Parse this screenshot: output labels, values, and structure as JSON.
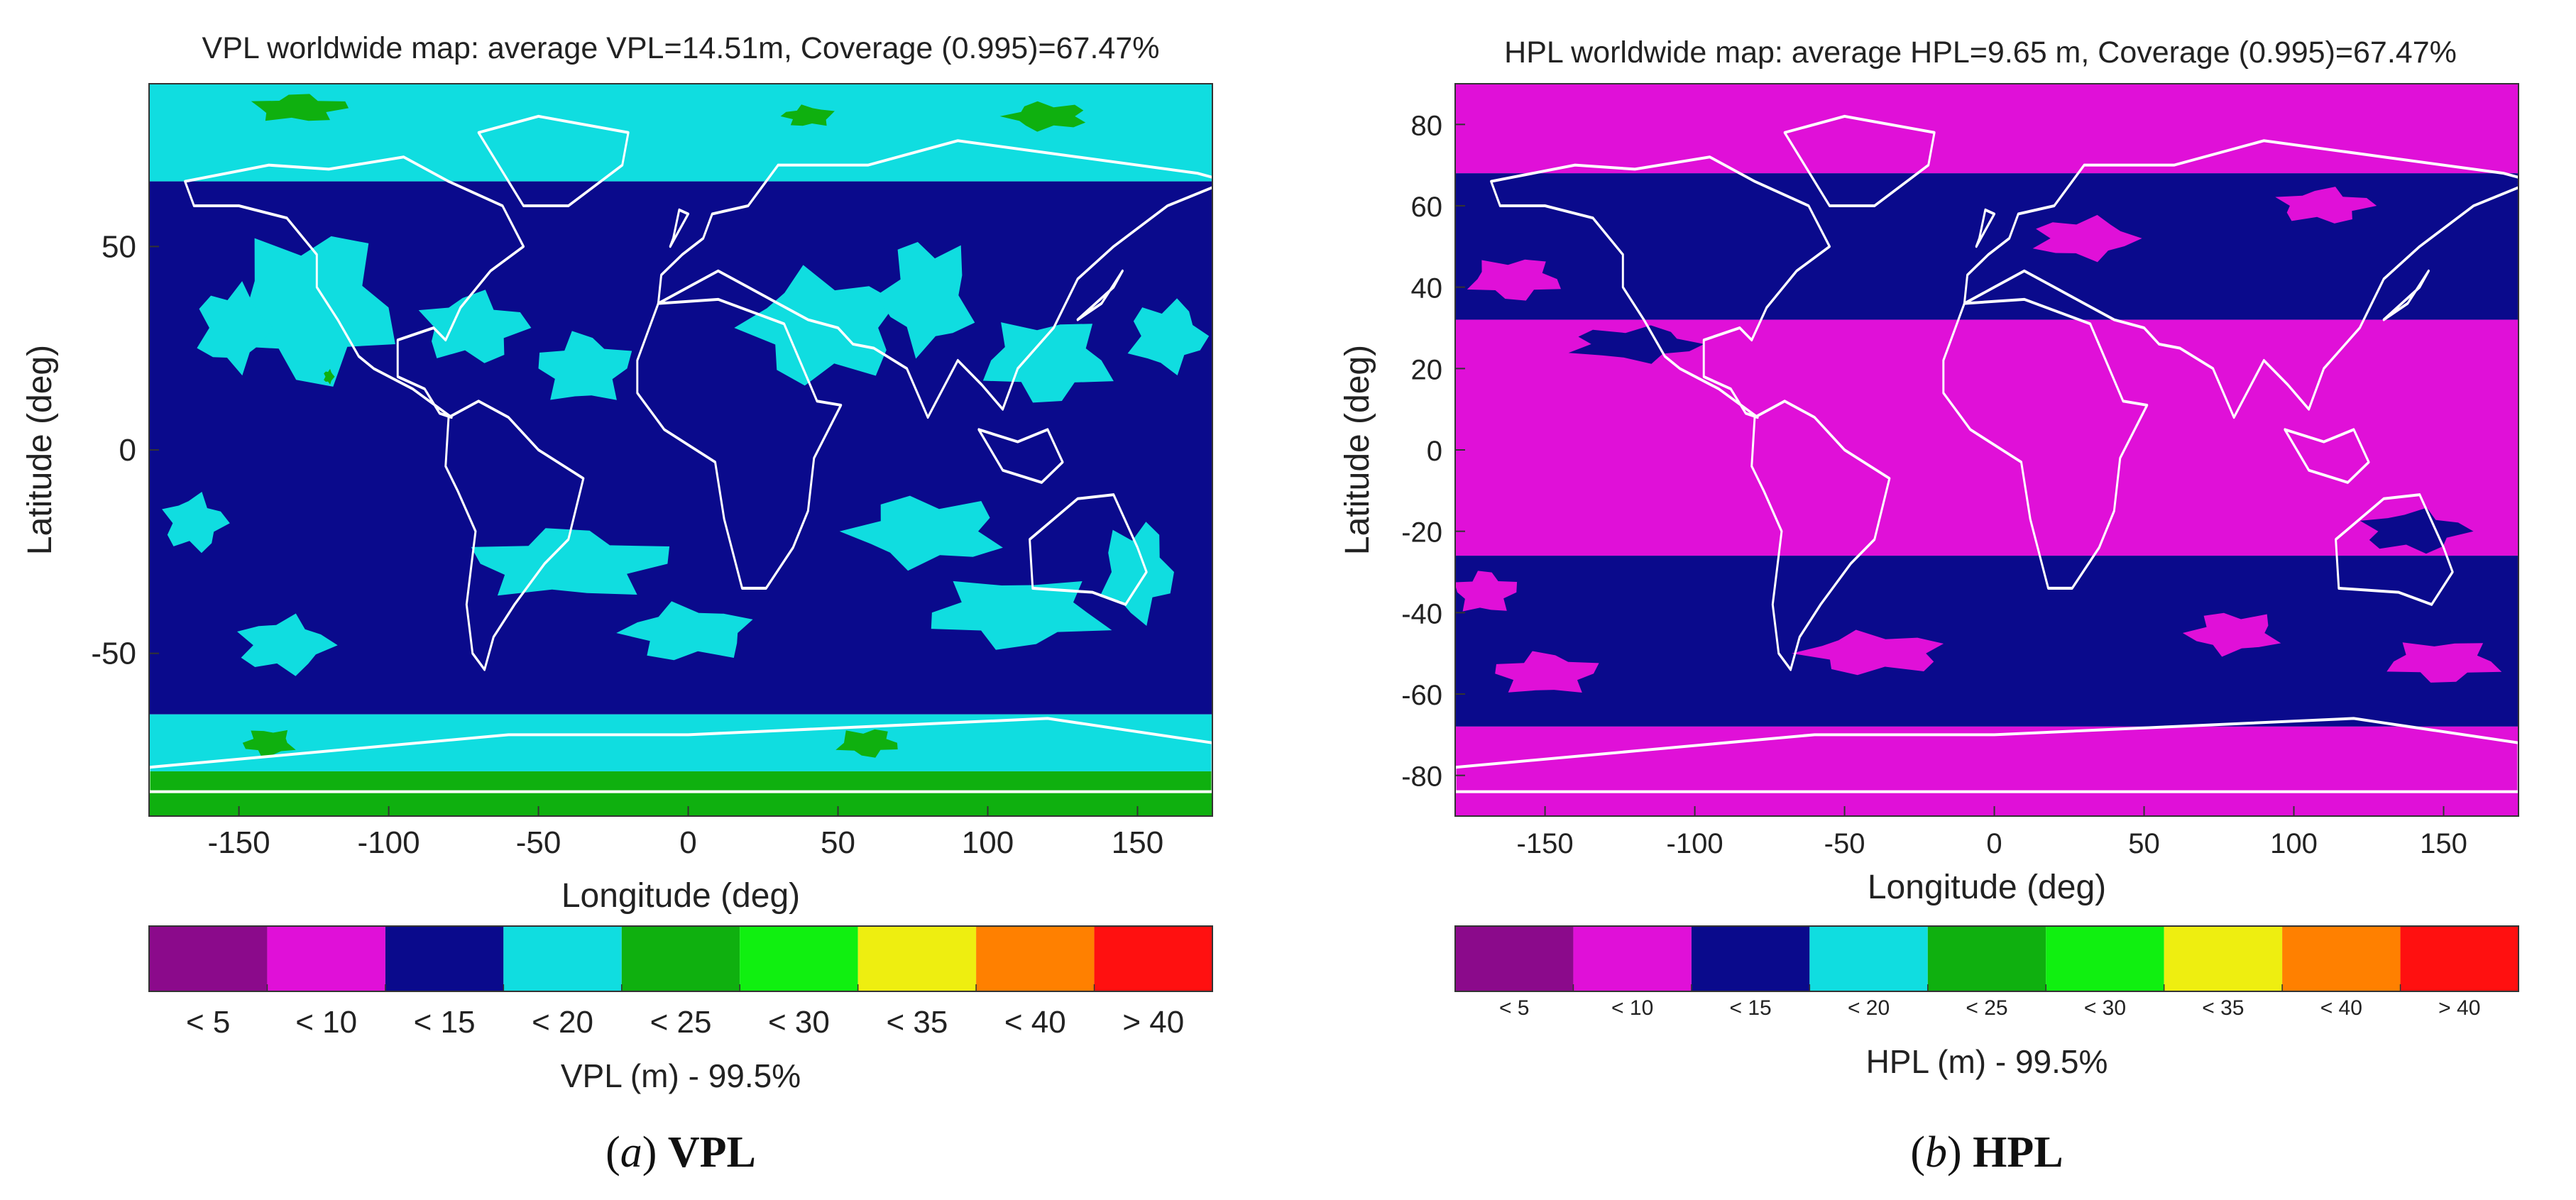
{
  "captions": {
    "a": {
      "letter": "a",
      "label": "VPL"
    },
    "b": {
      "letter": "b",
      "label": "HPL"
    }
  },
  "chart_data": [
    {
      "type": "heatmap",
      "subtype": "world-contour-map",
      "title": "VPL worldwide map: average VPL=14.51m, Coverage (0.995)=67.47%",
      "xlabel": "Longitude (deg)",
      "ylabel": "Latitude (deg)",
      "xlim": [
        -180,
        175
      ],
      "ylim": [
        -90,
        90
      ],
      "xticks": [
        -150,
        -100,
        -50,
        0,
        50,
        100,
        150
      ],
      "yticks": [
        50,
        0,
        -50
      ],
      "colorbar": {
        "label": "VPL (m) - 99.5%",
        "categories": [
          "< 5",
          "< 10",
          "< 15",
          "< 20",
          "< 25",
          "< 30",
          "< 35",
          "< 40",
          "> 40"
        ],
        "colors": [
          "#8B0A8B",
          "#E010D8",
          "#0A0A8C",
          "#10DDE0",
          "#0FB00F",
          "#10F010",
          "#EEEE10",
          "#FF8000",
          "#FF1010"
        ],
        "label_position": "bottom",
        "category_label_size": "large"
      },
      "bands": [
        {
          "lat_from": 90,
          "lat_to": 66,
          "class": "< 20"
        },
        {
          "lat_from": 66,
          "lat_to": -65,
          "class": "< 15"
        },
        {
          "lat_from": -65,
          "lat_to": -79,
          "class": "< 20"
        },
        {
          "lat_from": -79,
          "lat_to": -90,
          "class": "< 25"
        }
      ],
      "patches": [
        {
          "lon": -125,
          "lat": 35,
          "rlon": 32,
          "rlat": 22,
          "class": "< 20"
        },
        {
          "lon": -152,
          "lat": 30,
          "rlon": 14,
          "rlat": 12,
          "class": "< 20"
        },
        {
          "lon": -72,
          "lat": 30,
          "rlon": 20,
          "rlat": 10,
          "class": "< 20"
        },
        {
          "lon": -35,
          "lat": 20,
          "rlon": 18,
          "rlat": 10,
          "class": "< 20"
        },
        {
          "lon": 45,
          "lat": 30,
          "rlon": 30,
          "rlat": 16,
          "class": "< 20"
        },
        {
          "lon": 80,
          "lat": 38,
          "rlon": 18,
          "rlat": 16,
          "class": "< 20"
        },
        {
          "lon": 120,
          "lat": 22,
          "rlon": 25,
          "rlat": 12,
          "class": "< 20"
        },
        {
          "lon": 160,
          "lat": 28,
          "rlon": 15,
          "rlat": 10,
          "class": "< 20"
        },
        {
          "lon": -165,
          "lat": -18,
          "rlon": 12,
          "rlat": 8,
          "class": "< 20"
        },
        {
          "lon": -40,
          "lat": -28,
          "rlon": 38,
          "rlat": 10,
          "class": "< 20"
        },
        {
          "lon": 0,
          "lat": -45,
          "rlon": 25,
          "rlat": 8,
          "class": "< 20"
        },
        {
          "lon": 80,
          "lat": -20,
          "rlon": 30,
          "rlat": 10,
          "class": "< 20"
        },
        {
          "lon": 110,
          "lat": -40,
          "rlon": 35,
          "rlat": 10,
          "class": "< 20"
        },
        {
          "lon": 150,
          "lat": -30,
          "rlon": 14,
          "rlat": 14,
          "class": "< 20"
        },
        {
          "lon": -135,
          "lat": -48,
          "rlon": 18,
          "rlat": 8,
          "class": "< 20"
        },
        {
          "lon": -130,
          "lat": 84,
          "rlon": 18,
          "rlat": 4,
          "class": "< 25"
        },
        {
          "lon": 40,
          "lat": 82,
          "rlon": 10,
          "rlat": 3,
          "class": "< 25"
        },
        {
          "lon": 120,
          "lat": 82,
          "rlon": 16,
          "rlat": 4,
          "class": "< 25"
        },
        {
          "lon": -140,
          "lat": -72,
          "rlon": 10,
          "rlat": 4,
          "class": "< 25"
        },
        {
          "lon": 60,
          "lat": -72,
          "rlon": 12,
          "rlat": 4,
          "class": "< 25"
        },
        {
          "lon": -120,
          "lat": 18,
          "rlon": 2,
          "rlat": 2,
          "class": "< 25"
        }
      ]
    },
    {
      "type": "heatmap",
      "subtype": "world-contour-map",
      "title": "HPL worldwide map: average HPL=9.65 m, Coverage (0.995)=67.47%",
      "xlabel": "Longitude (deg)",
      "ylabel": "Latitude (deg)",
      "xlim": [
        -180,
        175
      ],
      "ylim": [
        -90,
        90
      ],
      "xticks": [
        -150,
        -100,
        -50,
        0,
        50,
        100,
        150
      ],
      "yticks": [
        80,
        60,
        40,
        20,
        0,
        -20,
        -40,
        -60,
        -80
      ],
      "colorbar": {
        "label": "HPL (m) - 99.5%",
        "categories": [
          "< 5",
          "< 10",
          "< 15",
          "< 20",
          "< 25",
          "< 30",
          "< 35",
          "< 40",
          "> 40"
        ],
        "colors": [
          "#8B0A8B",
          "#E010D8",
          "#0A0A8C",
          "#10DDE0",
          "#0FB00F",
          "#10F010",
          "#EEEE10",
          "#FF8000",
          "#FF1010"
        ],
        "label_position": "bottom",
        "category_label_size": "small"
      },
      "bands": [
        {
          "lat_from": 90,
          "lat_to": 68,
          "class": "< 10"
        },
        {
          "lat_from": 68,
          "lat_to": 32,
          "class": "< 15"
        },
        {
          "lat_from": 32,
          "lat_to": -26,
          "class": "< 10"
        },
        {
          "lat_from": -26,
          "lat_to": -68,
          "class": "< 15"
        },
        {
          "lat_from": -68,
          "lat_to": -90,
          "class": "< 10"
        }
      ],
      "patches": [
        {
          "lon": -160,
          "lat": 42,
          "rlon": 18,
          "rlat": 6,
          "class": "< 10"
        },
        {
          "lon": 30,
          "lat": 52,
          "rlon": 20,
          "rlat": 6,
          "class": "< 10"
        },
        {
          "lon": 110,
          "lat": 60,
          "rlon": 18,
          "rlat": 5,
          "class": "< 10"
        },
        {
          "lon": -150,
          "lat": -55,
          "rlon": 20,
          "rlat": 6,
          "class": "< 10"
        },
        {
          "lon": -40,
          "lat": -50,
          "rlon": 28,
          "rlat": 6,
          "class": "< 10"
        },
        {
          "lon": 80,
          "lat": -45,
          "rlon": 18,
          "rlat": 6,
          "class": "< 10"
        },
        {
          "lon": 150,
          "lat": -52,
          "rlon": 22,
          "rlat": 6,
          "class": "< 10"
        },
        {
          "lon": -120,
          "lat": 26,
          "rlon": 25,
          "rlat": 5,
          "class": "< 15"
        },
        {
          "lon": 140,
          "lat": -20,
          "rlon": 20,
          "rlat": 6,
          "class": "< 15"
        },
        {
          "lon": -170,
          "lat": -35,
          "rlon": 12,
          "rlat": 6,
          "class": "< 10"
        }
      ]
    }
  ]
}
